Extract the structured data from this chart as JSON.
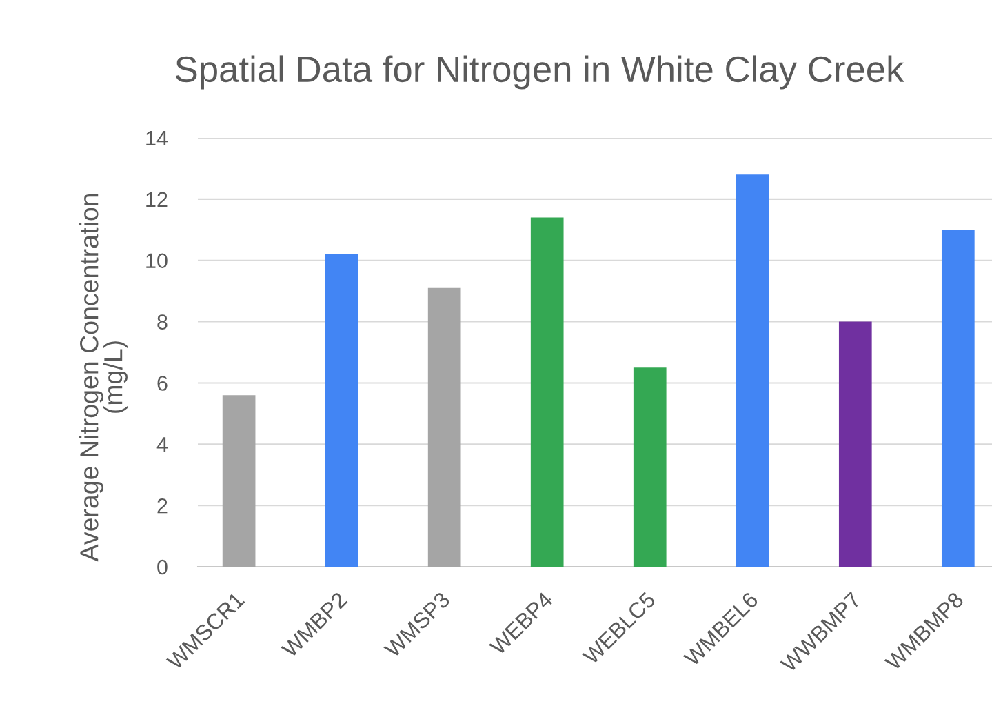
{
  "chart_data": {
    "type": "bar",
    "title": "Spatial Data for Nitrogen in White Clay Creek",
    "ylabel": "Average Nitrogen Concentration\n(mg/L)",
    "categories": [
      "WMSCR1",
      "WMBP2",
      "WMSP3",
      "WEBP4",
      "WEBLC5",
      "WMBEL6",
      "WWBMP7",
      "WMBMP8"
    ],
    "values": [
      5.6,
      10.2,
      9.1,
      11.4,
      6.5,
      12.8,
      8.0,
      11.0
    ],
    "colors": [
      "#a5a5a5",
      "#4285f4",
      "#a5a5a5",
      "#34a853",
      "#34a853",
      "#4285f4",
      "#7030a0",
      "#4285f4"
    ],
    "ylim": [
      0,
      14
    ],
    "yticks": [
      0,
      2,
      4,
      6,
      8,
      10,
      12,
      14
    ],
    "grid": "y"
  }
}
